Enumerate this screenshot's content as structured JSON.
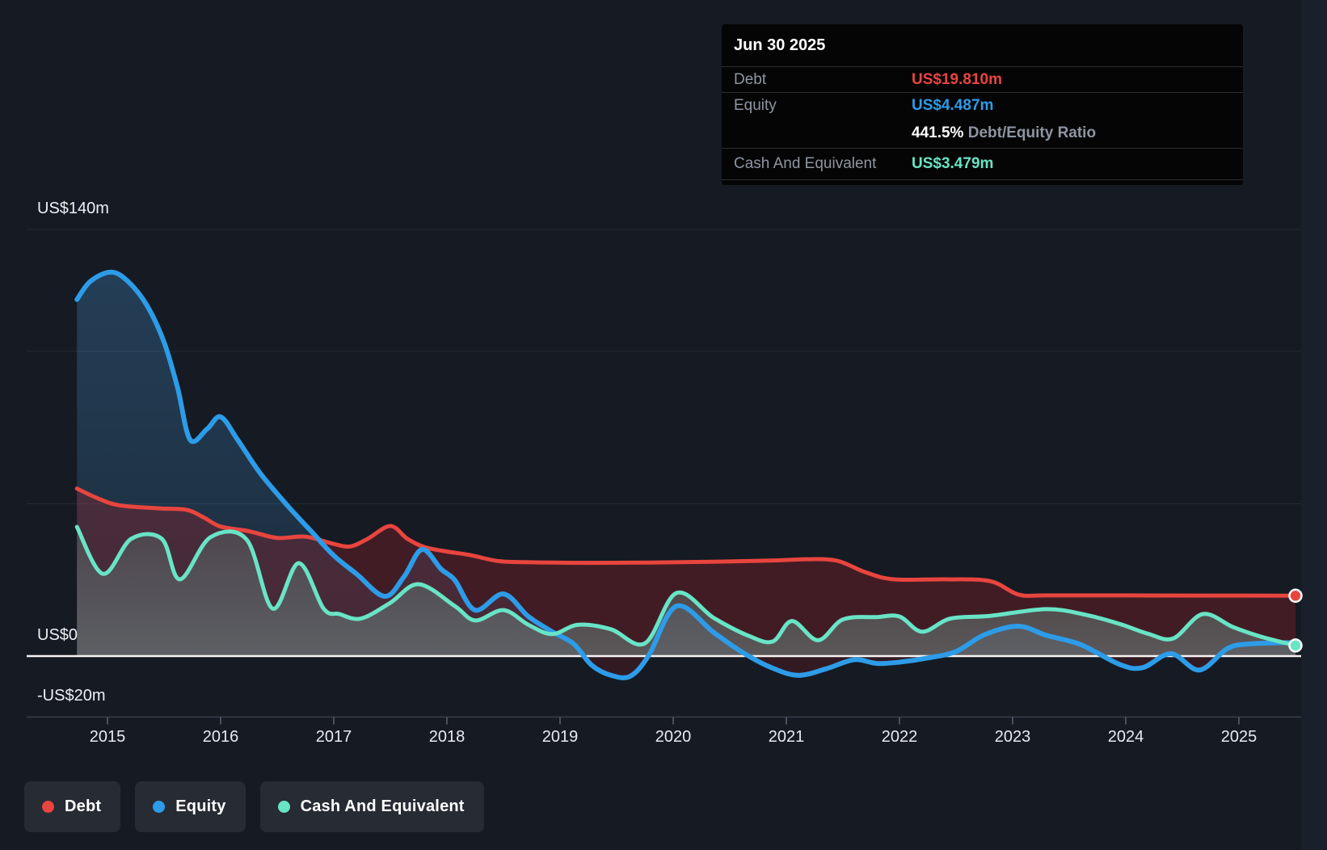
{
  "colors": {
    "background": "#151a23",
    "debt": "#e8453e",
    "equity": "#2d9ce8",
    "cash": "#68e4c6",
    "zero_line": "#f7f4f2",
    "gridline": "#252c36",
    "axis_line": "#3a414d",
    "tick": "#4a5260",
    "label_gray": "#8e95a0"
  },
  "tooltip": {
    "date": "Jun 30 2025",
    "debt_label": "Debt",
    "debt_value": "US$19.810m",
    "equity_label": "Equity",
    "equity_value": "US$4.487m",
    "ratio_value": "441.5%",
    "ratio_label": " Debt/Equity Ratio",
    "cash_label": "Cash And Equivalent",
    "cash_value": "US$3.479m"
  },
  "y_axis": {
    "labels": [
      {
        "text": "US$140m",
        "value": 140
      },
      {
        "text": "US$0",
        "value": 0
      },
      {
        "text": "-US$20m",
        "value": -20
      }
    ]
  },
  "x_axis": {
    "years": [
      2015,
      2016,
      2017,
      2018,
      2019,
      2020,
      2021,
      2022,
      2023,
      2024,
      2025
    ]
  },
  "legend": {
    "items": [
      {
        "label": "Debt"
      },
      {
        "label": "Equity"
      },
      {
        "label": "Cash And Equivalent"
      }
    ]
  },
  "chart_data": {
    "type": "area",
    "x_unit": "year",
    "y_unit": "US$ millions",
    "xlim": [
      2014.55,
      2025.72
    ],
    "ylim": [
      -20,
      140
    ],
    "gridline_values": [
      140,
      100,
      50
    ],
    "zero_value": 0,
    "axis_bottom_value": -20,
    "legend_position": "bottom-left",
    "series": [
      {
        "name": "Debt",
        "color": "#e8453e",
        "end_marker": true,
        "points": [
          [
            2014.73,
            55
          ],
          [
            2014.9,
            52
          ],
          [
            2015.1,
            49.5
          ],
          [
            2015.45,
            48.5
          ],
          [
            2015.7,
            48
          ],
          [
            2015.85,
            45.5
          ],
          [
            2016.0,
            42.5
          ],
          [
            2016.25,
            41
          ],
          [
            2016.5,
            38.8
          ],
          [
            2016.75,
            39.2
          ],
          [
            2017.0,
            36.8
          ],
          [
            2017.15,
            36
          ],
          [
            2017.3,
            38.5
          ],
          [
            2017.5,
            42.7
          ],
          [
            2017.65,
            38.5
          ],
          [
            2017.8,
            35.8
          ],
          [
            2018.0,
            34.3
          ],
          [
            2018.2,
            33.2
          ],
          [
            2018.45,
            31.2
          ],
          [
            2018.7,
            30.8
          ],
          [
            2019.2,
            30.6
          ],
          [
            2019.8,
            30.7
          ],
          [
            2020.4,
            31
          ],
          [
            2020.9,
            31.4
          ],
          [
            2021.2,
            31.8
          ],
          [
            2021.45,
            31.3
          ],
          [
            2021.7,
            27.5
          ],
          [
            2021.95,
            25.2
          ],
          [
            2022.4,
            25.2
          ],
          [
            2022.8,
            24.6
          ],
          [
            2023.05,
            20.2
          ],
          [
            2023.3,
            19.9
          ],
          [
            2024.0,
            19.9
          ],
          [
            2024.7,
            19.85
          ],
          [
            2025.5,
            19.81
          ]
        ]
      },
      {
        "name": "Equity",
        "color": "#2d9ce8",
        "end_marker": false,
        "points": [
          [
            2014.73,
            117
          ],
          [
            2014.85,
            123
          ],
          [
            2015.03,
            126
          ],
          [
            2015.18,
            123
          ],
          [
            2015.35,
            115
          ],
          [
            2015.5,
            103
          ],
          [
            2015.62,
            88
          ],
          [
            2015.73,
            71
          ],
          [
            2015.88,
            74.5
          ],
          [
            2016.0,
            78.5
          ],
          [
            2016.15,
            71
          ],
          [
            2016.35,
            60
          ],
          [
            2016.6,
            49
          ],
          [
            2016.8,
            41
          ],
          [
            2017.0,
            33
          ],
          [
            2017.2,
            27
          ],
          [
            2017.45,
            19.6
          ],
          [
            2017.62,
            26
          ],
          [
            2017.78,
            35
          ],
          [
            2017.95,
            28.5
          ],
          [
            2018.07,
            24.9
          ],
          [
            2018.25,
            15.1
          ],
          [
            2018.5,
            20.4
          ],
          [
            2018.72,
            13
          ],
          [
            2018.93,
            8
          ],
          [
            2019.12,
            4
          ],
          [
            2019.28,
            -3
          ],
          [
            2019.45,
            -6.3
          ],
          [
            2019.62,
            -6.6
          ],
          [
            2019.78,
            0
          ],
          [
            2020.03,
            16.4
          ],
          [
            2020.36,
            7.7
          ],
          [
            2020.6,
            1.5
          ],
          [
            2020.85,
            -3.5
          ],
          [
            2021.1,
            -6.3
          ],
          [
            2021.35,
            -4.2
          ],
          [
            2021.6,
            -1.2
          ],
          [
            2021.8,
            -2.4
          ],
          [
            2022.0,
            -2.0
          ],
          [
            2022.25,
            -0.6
          ],
          [
            2022.5,
            1.5
          ],
          [
            2022.75,
            7.0
          ],
          [
            2023.05,
            9.8
          ],
          [
            2023.3,
            6.8
          ],
          [
            2023.6,
            3.8
          ],
          [
            2023.95,
            -2.8
          ],
          [
            2024.15,
            -3.8
          ],
          [
            2024.4,
            0.8
          ],
          [
            2024.65,
            -4.6
          ],
          [
            2024.9,
            2.5
          ],
          [
            2025.1,
            4.0
          ],
          [
            2025.5,
            4.487
          ]
        ]
      },
      {
        "name": "Cash And Equivalent",
        "color": "#68e4c6",
        "end_marker": true,
        "points": [
          [
            2014.73,
            42.4
          ],
          [
            2014.96,
            27
          ],
          [
            2015.21,
            38.5
          ],
          [
            2015.48,
            38.5
          ],
          [
            2015.64,
            25.2
          ],
          [
            2015.91,
            39
          ],
          [
            2016.23,
            38.2
          ],
          [
            2016.46,
            15.6
          ],
          [
            2016.69,
            30.5
          ],
          [
            2016.91,
            15.6
          ],
          [
            2017.05,
            13.8
          ],
          [
            2017.24,
            12.3
          ],
          [
            2017.5,
            17.5
          ],
          [
            2017.75,
            23.6
          ],
          [
            2018.07,
            16.4
          ],
          [
            2018.25,
            11.7
          ],
          [
            2018.5,
            15.1
          ],
          [
            2018.72,
            10.3
          ],
          [
            2018.93,
            7.2
          ],
          [
            2019.16,
            10.3
          ],
          [
            2019.45,
            8.8
          ],
          [
            2019.75,
            4.2
          ],
          [
            2020.03,
            20.7
          ],
          [
            2020.36,
            12.5
          ],
          [
            2020.67,
            6.6
          ],
          [
            2020.88,
            4.8
          ],
          [
            2021.05,
            11.5
          ],
          [
            2021.28,
            5.2
          ],
          [
            2021.5,
            12.0
          ],
          [
            2021.8,
            12.8
          ],
          [
            2022.0,
            13.0
          ],
          [
            2022.2,
            8.0
          ],
          [
            2022.45,
            12.3
          ],
          [
            2022.8,
            13.2
          ],
          [
            2023.3,
            15.4
          ],
          [
            2023.65,
            13.5
          ],
          [
            2023.95,
            10.5
          ],
          [
            2024.2,
            7.3
          ],
          [
            2024.42,
            5.8
          ],
          [
            2024.68,
            13.8
          ],
          [
            2024.95,
            9.5
          ],
          [
            2025.2,
            6.3
          ],
          [
            2025.5,
            3.479
          ]
        ]
      }
    ]
  }
}
